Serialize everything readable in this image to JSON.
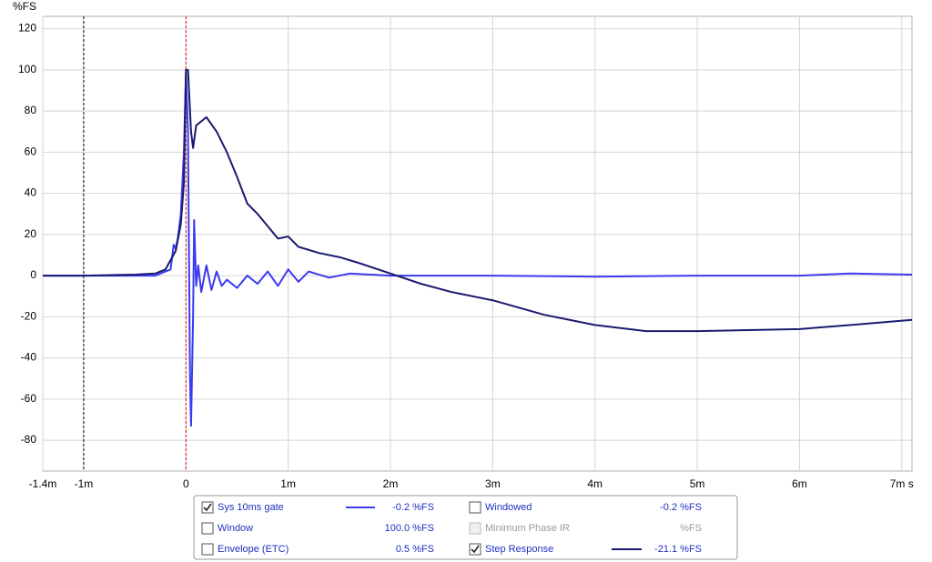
{
  "chart_data": {
    "type": "line",
    "y_label": "%FS",
    "xlim": [
      -1.4,
      7.1
    ],
    "ylim": [
      -95,
      126
    ],
    "xticks": [
      {
        "value": -1.4,
        "label": "-1.4m"
      },
      {
        "value": -1,
        "label": "-1m"
      },
      0,
      {
        "value": 1,
        "label": "1m"
      },
      {
        "value": 2,
        "label": "2m"
      },
      {
        "value": 3,
        "label": "3m"
      },
      {
        "value": 4,
        "label": "4m"
      },
      {
        "value": 5,
        "label": "5m"
      },
      {
        "value": 6,
        "label": "6m"
      },
      {
        "value": 7,
        "label": "7m s"
      }
    ],
    "yticks": [
      120,
      100,
      80,
      60,
      40,
      20,
      0,
      -20,
      -40,
      -60,
      -80
    ],
    "grid": true,
    "markers": [
      {
        "value": -1,
        "color": "#000000"
      },
      {
        "value": 0,
        "color": "#e01010"
      }
    ],
    "series": [
      {
        "name": "Sys 10ms gate",
        "color": "#3a3af0",
        "checked": true,
        "readout": "-0.2 %FS",
        "x": [
          -1.4,
          -0.3,
          -0.15,
          -0.12,
          -0.1,
          -0.08,
          -0.05,
          -0.02,
          0,
          0.02,
          0.04,
          0.05,
          0.07,
          0.08,
          0.1,
          0.12,
          0.15,
          0.2,
          0.25,
          0.3,
          0.35,
          0.4,
          0.5,
          0.6,
          0.7,
          0.8,
          0.9,
          1.0,
          1.1,
          1.2,
          1.4,
          1.6,
          2,
          3,
          4,
          5,
          6,
          6.5,
          7.1
        ],
        "values": [
          0,
          0,
          3,
          15,
          13,
          18,
          30,
          60,
          98,
          70,
          -50,
          -73,
          -20,
          27,
          -5,
          5,
          -8,
          5,
          -7,
          2,
          -5,
          -2,
          -6,
          0,
          -4,
          2,
          -5,
          3,
          -3,
          2,
          -1,
          1,
          0,
          0,
          -0.5,
          0,
          0,
          1,
          0.5
        ]
      },
      {
        "name": "Step Response",
        "color": "#1a1a70",
        "checked": true,
        "readout": "-21.1 %FS",
        "x": [
          -1.4,
          -1,
          -0.5,
          -0.3,
          -0.2,
          -0.1,
          -0.05,
          -0.02,
          0,
          0.02,
          0.05,
          0.07,
          0.1,
          0.15,
          0.2,
          0.3,
          0.4,
          0.5,
          0.6,
          0.7,
          0.8,
          0.9,
          1.0,
          1.1,
          1.3,
          1.5,
          1.7,
          2.0,
          2.3,
          2.6,
          3.0,
          3.5,
          4.0,
          4.5,
          5.0,
          5.5,
          6.0,
          6.5,
          7.1
        ],
        "values": [
          0,
          0,
          0.5,
          1,
          3,
          12,
          25,
          45,
          100,
          100,
          70,
          62,
          73,
          75,
          77,
          70,
          60,
          48,
          35,
          30,
          24,
          18,
          19,
          14,
          11,
          9,
          6,
          1,
          -4,
          -8,
          -12,
          -19,
          -24,
          -27,
          -27,
          -26.5,
          -26,
          -24,
          -21.5
        ]
      }
    ],
    "other_readouts": [
      {
        "label": "Window",
        "checked": false,
        "enabled": true,
        "readout": "100.0 %FS"
      },
      {
        "label": "Envelope (ETC)",
        "checked": false,
        "enabled": true,
        "readout": "0.5 %FS"
      },
      {
        "label": "Windowed",
        "checked": false,
        "enabled": true,
        "readout": "-0.2 %FS"
      },
      {
        "label": "Minimum Phase IR",
        "checked": false,
        "enabled": false,
        "readout": "%FS"
      }
    ]
  }
}
